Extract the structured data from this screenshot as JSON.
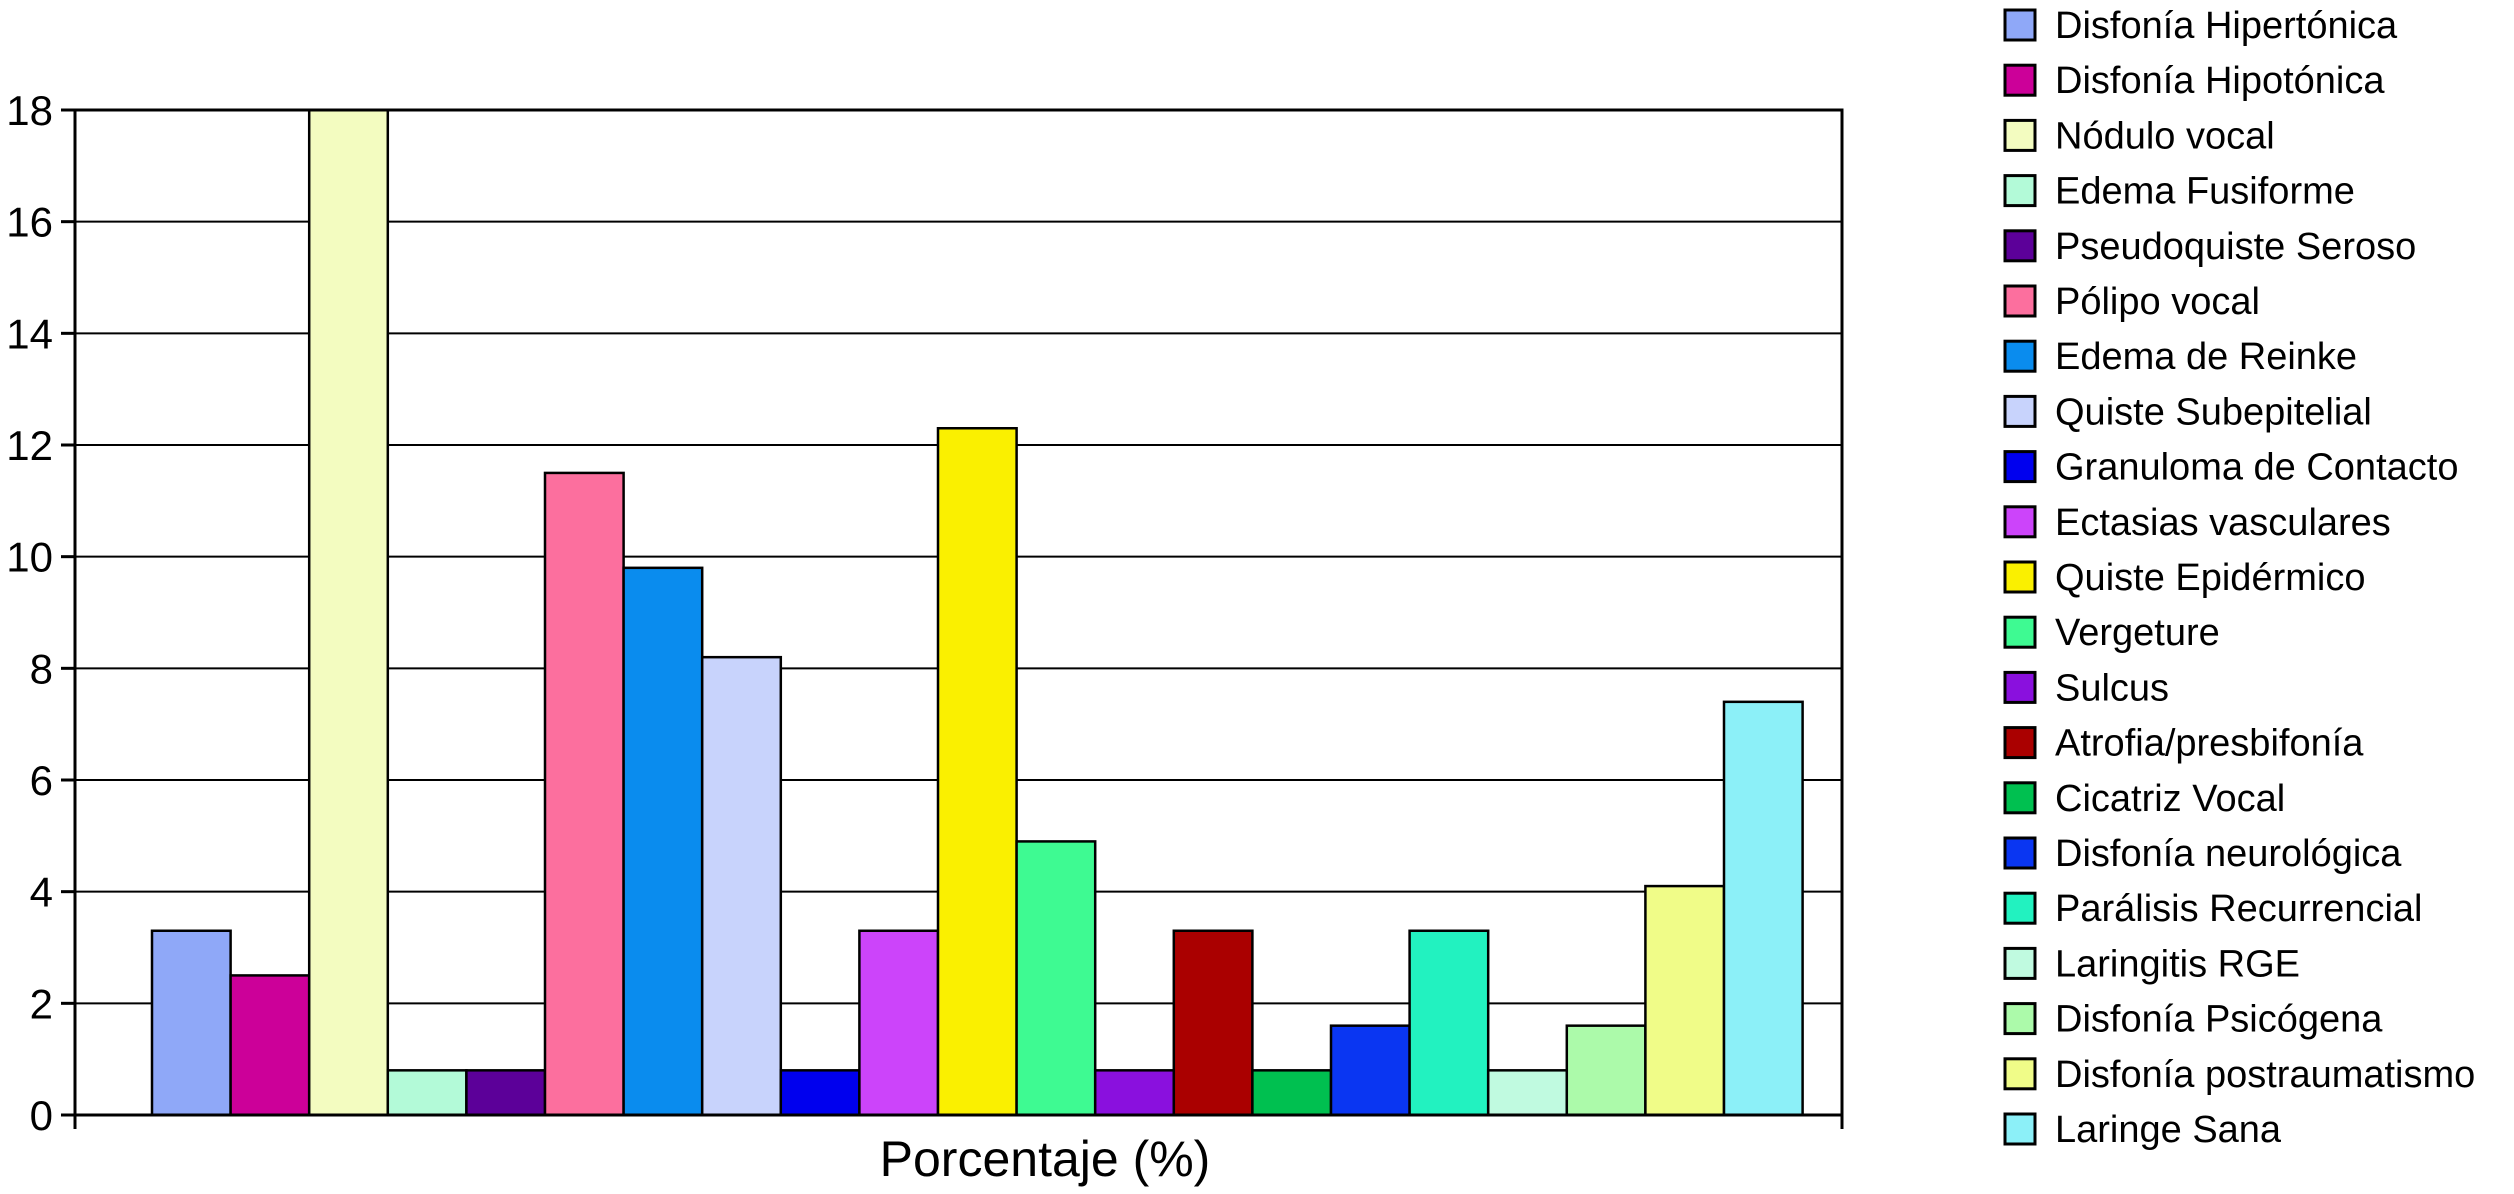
{
  "chart_data": {
    "type": "bar",
    "title": "",
    "xlabel": "Porcentaje (%)",
    "ylabel": "",
    "ylim": [
      0,
      18
    ],
    "yticks": [
      0,
      2,
      4,
      6,
      8,
      10,
      12,
      14,
      16,
      18
    ],
    "grid": true,
    "legend_position": "right",
    "series": [
      {
        "name": "Disfonía Hipertónica",
        "value": 3.3,
        "color": "#8FA8F8"
      },
      {
        "name": "Disfonía Hipotónica",
        "value": 2.5,
        "color": "#CC0099"
      },
      {
        "name": "Nódulo vocal",
        "value": 18.0,
        "color": "#F3FCC0"
      },
      {
        "name": "Edema Fusiforme",
        "value": 0.8,
        "color": "#B3FAD8"
      },
      {
        "name": "Pseudoquiste Seroso",
        "value": 0.8,
        "color": "#5C0099"
      },
      {
        "name": "Pólipo vocal",
        "value": 11.5,
        "color": "#FC6F9E"
      },
      {
        "name": "Edema de Reinke",
        "value": 9.8,
        "color": "#0A8CEE"
      },
      {
        "name": "Quiste Subepitelial",
        "value": 8.2,
        "color": "#C8D3FC"
      },
      {
        "name": "Granuloma de Contacto",
        "value": 0.8,
        "color": "#0000EE"
      },
      {
        "name": "Ectasias vasculares",
        "value": 3.3,
        "color": "#CC44FA"
      },
      {
        "name": "Quiste Epidérmico",
        "value": 12.3,
        "color": "#FAF000"
      },
      {
        "name": "Vergeture",
        "value": 4.9,
        "color": "#3EFA92"
      },
      {
        "name": "Sulcus",
        "value": 0.8,
        "color": "#8A10DE"
      },
      {
        "name": "Atrofia/presbifonía",
        "value": 3.3,
        "color": "#AA0000"
      },
      {
        "name": "Cicatriz Vocal",
        "value": 0.8,
        "color": "#00C050"
      },
      {
        "name": "Disfonía neurológica",
        "value": 1.6,
        "color": "#0A36F2"
      },
      {
        "name": "Parálisis Recurrencial",
        "value": 3.3,
        "color": "#22F2C0"
      },
      {
        "name": "Laringitis RGE",
        "value": 0.8,
        "color": "#C0FAE0"
      },
      {
        "name": "Disfonía Psicógena",
        "value": 1.6,
        "color": "#ACFAAA"
      },
      {
        "name": "Disfonía postraumatismo",
        "value": 4.1,
        "color": "#F0FC88"
      },
      {
        "name": "Laringe Sana",
        "value": 7.4,
        "color": "#8CF0F8"
      }
    ]
  }
}
